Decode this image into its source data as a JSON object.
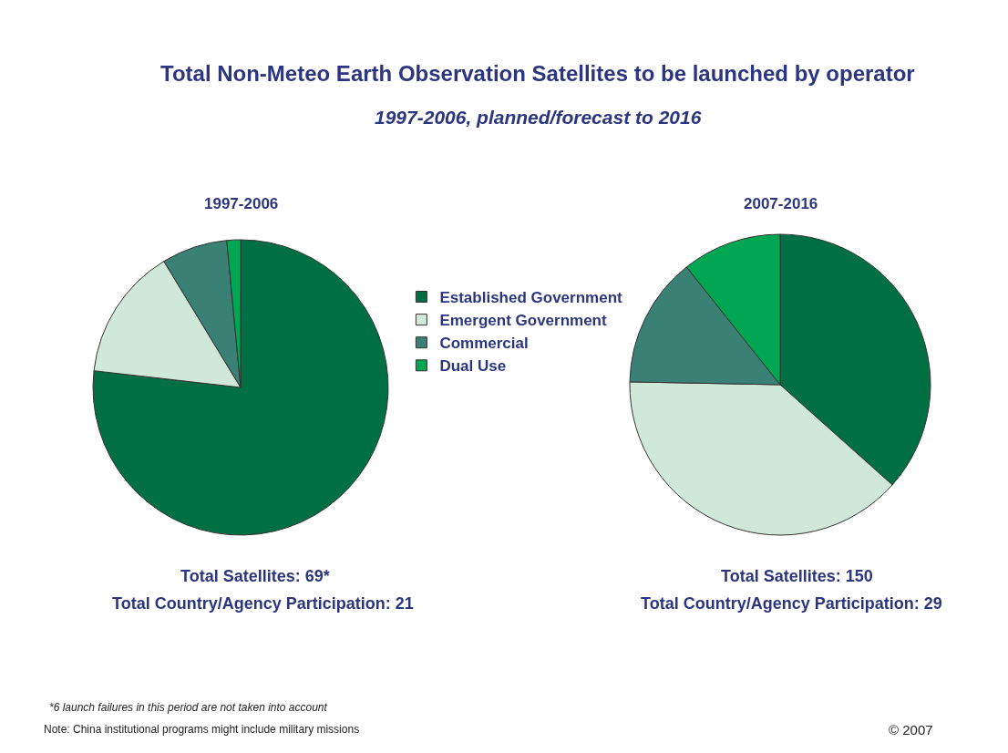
{
  "chart_data": [
    {
      "type": "pie",
      "title": "1997-2006",
      "categories": [
        "Established Government",
        "Emergent Government",
        "Commercial",
        "Dual Use"
      ],
      "values": [
        76.8,
        14.5,
        7.2,
        1.5
      ],
      "colors": [
        "#006f44",
        "#cfe8d9",
        "#3b8074",
        "#00a651"
      ],
      "legend": "right",
      "annotations": [
        "Total Non-Meteo Earth Observation Satellites to be launched by operator",
        "1997-2006, planned/forecast to 2016",
        "Total Satellites: 69*",
        "Total Country/Agency Participation: 21",
        "*6 launch failures in this period are not taken into account",
        "Note: China institutional programs might include military missions",
        "© 2007"
      ]
    },
    {
      "type": "pie",
      "title": "2007-2016",
      "categories": [
        null,
        null,
        null,
        null
      ],
      "values": [
        36.6,
        38.7,
        14.0,
        10.7
      ],
      "colors": [
        "#006f44",
        "#cfe8d9",
        "#3b8074",
        "#00a651"
      ],
      "annotations": [
        "Total Satellites: 150",
        "Total Country/Agency Participation: 29"
      ]
    }
  ]
}
